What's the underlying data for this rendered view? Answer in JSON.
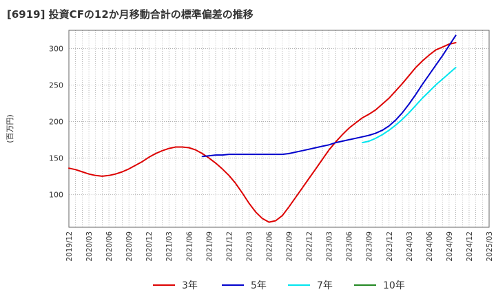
{
  "chart_data": {
    "type": "line",
    "title": "[6919]  投資CFの12か月移動合計の標準偏差の推移",
    "ylabel": "(百万円)",
    "xlabel": "",
    "ylim": [
      55,
      325
    ],
    "yticks": [
      100,
      150,
      200,
      250,
      300
    ],
    "xticks": [
      "2019/12",
      "2020/03",
      "2020/06",
      "2020/09",
      "2020/12",
      "2021/03",
      "2021/06",
      "2021/09",
      "2021/12",
      "2022/03",
      "2022/06",
      "2022/09",
      "2022/12",
      "2023/03",
      "2023/06",
      "2023/09",
      "2023/12",
      "2024/03",
      "2024/06",
      "2024/09",
      "2024/12",
      "2025/03"
    ],
    "grid": true,
    "legend_position": "bottom",
    "series": [
      {
        "name": "3年",
        "color": "#dd0000",
        "points": [
          [
            "2019/12",
            136
          ],
          [
            "2020/01",
            134
          ],
          [
            "2020/02",
            131
          ],
          [
            "2020/03",
            128
          ],
          [
            "2020/04",
            126
          ],
          [
            "2020/05",
            125
          ],
          [
            "2020/06",
            126
          ],
          [
            "2020/07",
            128
          ],
          [
            "2020/08",
            131
          ],
          [
            "2020/09",
            135
          ],
          [
            "2020/10",
            140
          ],
          [
            "2020/11",
            145
          ],
          [
            "2020/12",
            151
          ],
          [
            "2021/01",
            156
          ],
          [
            "2021/02",
            160
          ],
          [
            "2021/03",
            163
          ],
          [
            "2021/04",
            165
          ],
          [
            "2021/05",
            165
          ],
          [
            "2021/06",
            164
          ],
          [
            "2021/07",
            161
          ],
          [
            "2021/08",
            156
          ],
          [
            "2021/09",
            150
          ],
          [
            "2021/10",
            143
          ],
          [
            "2021/11",
            135
          ],
          [
            "2021/12",
            126
          ],
          [
            "2022/01",
            115
          ],
          [
            "2022/02",
            102
          ],
          [
            "2022/03",
            88
          ],
          [
            "2022/04",
            76
          ],
          [
            "2022/05",
            67
          ],
          [
            "2022/06",
            62
          ],
          [
            "2022/07",
            64
          ],
          [
            "2022/08",
            71
          ],
          [
            "2022/09",
            83
          ],
          [
            "2022/10",
            96
          ],
          [
            "2022/11",
            109
          ],
          [
            "2022/12",
            122
          ],
          [
            "2023/01",
            135
          ],
          [
            "2023/02",
            148
          ],
          [
            "2023/03",
            161
          ],
          [
            "2023/04",
            172
          ],
          [
            "2023/05",
            182
          ],
          [
            "2023/06",
            191
          ],
          [
            "2023/07",
            198
          ],
          [
            "2023/08",
            205
          ],
          [
            "2023/09",
            210
          ],
          [
            "2023/10",
            216
          ],
          [
            "2023/11",
            224
          ],
          [
            "2023/12",
            232
          ],
          [
            "2024/01",
            242
          ],
          [
            "2024/02",
            252
          ],
          [
            "2024/03",
            263
          ],
          [
            "2024/04",
            274
          ],
          [
            "2024/05",
            283
          ],
          [
            "2024/06",
            291
          ],
          [
            "2024/07",
            298
          ],
          [
            "2024/08",
            302
          ],
          [
            "2024/09",
            306
          ],
          [
            "2024/10",
            308
          ]
        ]
      },
      {
        "name": "5年",
        "color": "#0000cc",
        "points": [
          [
            "2021/08",
            152
          ],
          [
            "2021/09",
            153
          ],
          [
            "2021/10",
            154
          ],
          [
            "2021/11",
            154
          ],
          [
            "2021/12",
            155
          ],
          [
            "2022/01",
            155
          ],
          [
            "2022/02",
            155
          ],
          [
            "2022/03",
            155
          ],
          [
            "2022/04",
            155
          ],
          [
            "2022/05",
            155
          ],
          [
            "2022/06",
            155
          ],
          [
            "2022/07",
            155
          ],
          [
            "2022/08",
            155
          ],
          [
            "2022/09",
            156
          ],
          [
            "2022/10",
            158
          ],
          [
            "2022/11",
            160
          ],
          [
            "2022/12",
            162
          ],
          [
            "2023/01",
            164
          ],
          [
            "2023/02",
            166
          ],
          [
            "2023/03",
            168
          ],
          [
            "2023/04",
            171
          ],
          [
            "2023/05",
            173
          ],
          [
            "2023/06",
            175
          ],
          [
            "2023/07",
            177
          ],
          [
            "2023/08",
            179
          ],
          [
            "2023/09",
            181
          ],
          [
            "2023/10",
            184
          ],
          [
            "2023/11",
            188
          ],
          [
            "2023/12",
            194
          ],
          [
            "2024/01",
            202
          ],
          [
            "2024/02",
            212
          ],
          [
            "2024/03",
            224
          ],
          [
            "2024/04",
            237
          ],
          [
            "2024/05",
            251
          ],
          [
            "2024/06",
            264
          ],
          [
            "2024/07",
            277
          ],
          [
            "2024/08",
            290
          ],
          [
            "2024/09",
            304
          ],
          [
            "2024/10",
            318
          ]
        ]
      },
      {
        "name": "7年",
        "color": "#00e5ee",
        "points": [
          [
            "2023/08",
            171
          ],
          [
            "2023/09",
            173
          ],
          [
            "2023/10",
            177
          ],
          [
            "2023/11",
            182
          ],
          [
            "2023/12",
            188
          ],
          [
            "2024/01",
            195
          ],
          [
            "2024/02",
            203
          ],
          [
            "2024/03",
            212
          ],
          [
            "2024/04",
            222
          ],
          [
            "2024/05",
            232
          ],
          [
            "2024/06",
            241
          ],
          [
            "2024/07",
            250
          ],
          [
            "2024/08",
            258
          ],
          [
            "2024/09",
            266
          ],
          [
            "2024/10",
            274
          ]
        ]
      },
      {
        "name": "10年",
        "color": "#228822",
        "points": []
      }
    ]
  }
}
